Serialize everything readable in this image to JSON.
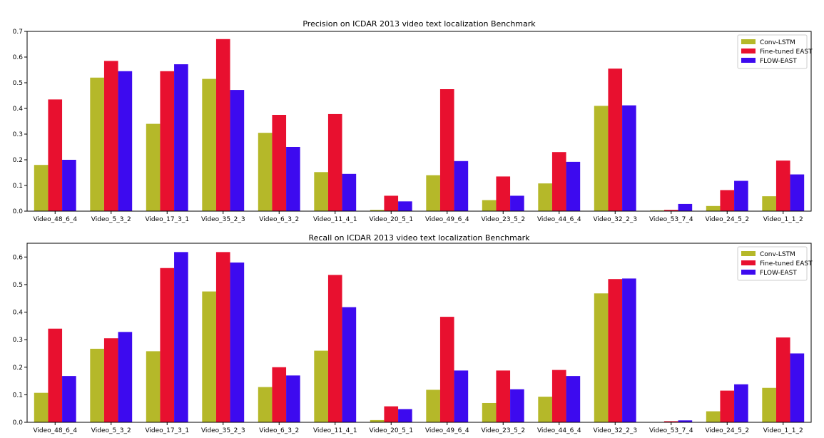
{
  "chart_data": [
    {
      "type": "bar",
      "title": "Precision on ICDAR 2013 video text localization Benchmark",
      "categories": [
        "Video_48_6_4",
        "Video_5_3_2",
        "Video_17_3_1",
        "Video_35_2_3",
        "Video_6_3_2",
        "Video_11_4_1",
        "Video_20_5_1",
        "Video_49_6_4",
        "Video_23_5_2",
        "Video_44_6_4",
        "Video_32_2_3",
        "Video_53_7_4",
        "Video_24_5_2",
        "Video_1_1_2"
      ],
      "series": [
        {
          "name": "Conv-LSTM",
          "color": "#b5b829",
          "values": [
            0.18,
            0.52,
            0.34,
            0.515,
            0.305,
            0.152,
            0.005,
            0.14,
            0.043,
            0.108,
            0.41,
            0.003,
            0.02,
            0.058
          ]
        },
        {
          "name": "Fine-tuned EAST",
          "color": "#e8102f",
          "values": [
            0.435,
            0.585,
            0.545,
            0.67,
            0.375,
            0.378,
            0.06,
            0.475,
            0.135,
            0.23,
            0.555,
            0.005,
            0.082,
            0.197
          ]
        },
        {
          "name": "FLOW-EAST",
          "color": "#3d0aef",
          "values": [
            0.2,
            0.545,
            0.572,
            0.472,
            0.25,
            0.145,
            0.038,
            0.195,
            0.06,
            0.192,
            0.412,
            0.028,
            0.118,
            0.143
          ]
        }
      ],
      "ylim": [
        0,
        0.7
      ],
      "yticks": [
        "0.0",
        "0.1",
        "0.2",
        "0.3",
        "0.4",
        "0.5",
        "0.6",
        "0.7"
      ],
      "legend": "top-right"
    },
    {
      "type": "bar",
      "title": "Recall on ICDAR 2013 video text localization Benchmark",
      "categories": [
        "Video_48_6_4",
        "Video_5_3_2",
        "Video_17_3_1",
        "Video_35_2_3",
        "Video_6_3_2",
        "Video_11_4_1",
        "Video_20_5_1",
        "Video_49_6_4",
        "Video_23_5_2",
        "Video_44_6_4",
        "Video_32_2_3",
        "Video_53_7_4",
        "Video_24_5_2",
        "Video_1_1_2"
      ],
      "series": [
        {
          "name": "Conv-LSTM",
          "color": "#b5b829",
          "values": [
            0.107,
            0.267,
            0.258,
            0.475,
            0.128,
            0.26,
            0.008,
            0.118,
            0.07,
            0.093,
            0.468,
            0.001,
            0.04,
            0.125
          ]
        },
        {
          "name": "Fine-tuned EAST",
          "color": "#e8102f",
          "values": [
            0.34,
            0.305,
            0.56,
            0.618,
            0.2,
            0.535,
            0.058,
            0.383,
            0.188,
            0.19,
            0.52,
            0.004,
            0.115,
            0.308
          ]
        },
        {
          "name": "FLOW-EAST",
          "color": "#3d0aef",
          "values": [
            0.168,
            0.328,
            0.618,
            0.58,
            0.17,
            0.418,
            0.048,
            0.188,
            0.12,
            0.168,
            0.522,
            0.007,
            0.138,
            0.25
          ]
        }
      ],
      "ylim": [
        0,
        0.65
      ],
      "yticks": [
        "0.0",
        "0.1",
        "0.2",
        "0.3",
        "0.4",
        "0.5",
        "0.6"
      ],
      "legend": "top-right"
    }
  ]
}
